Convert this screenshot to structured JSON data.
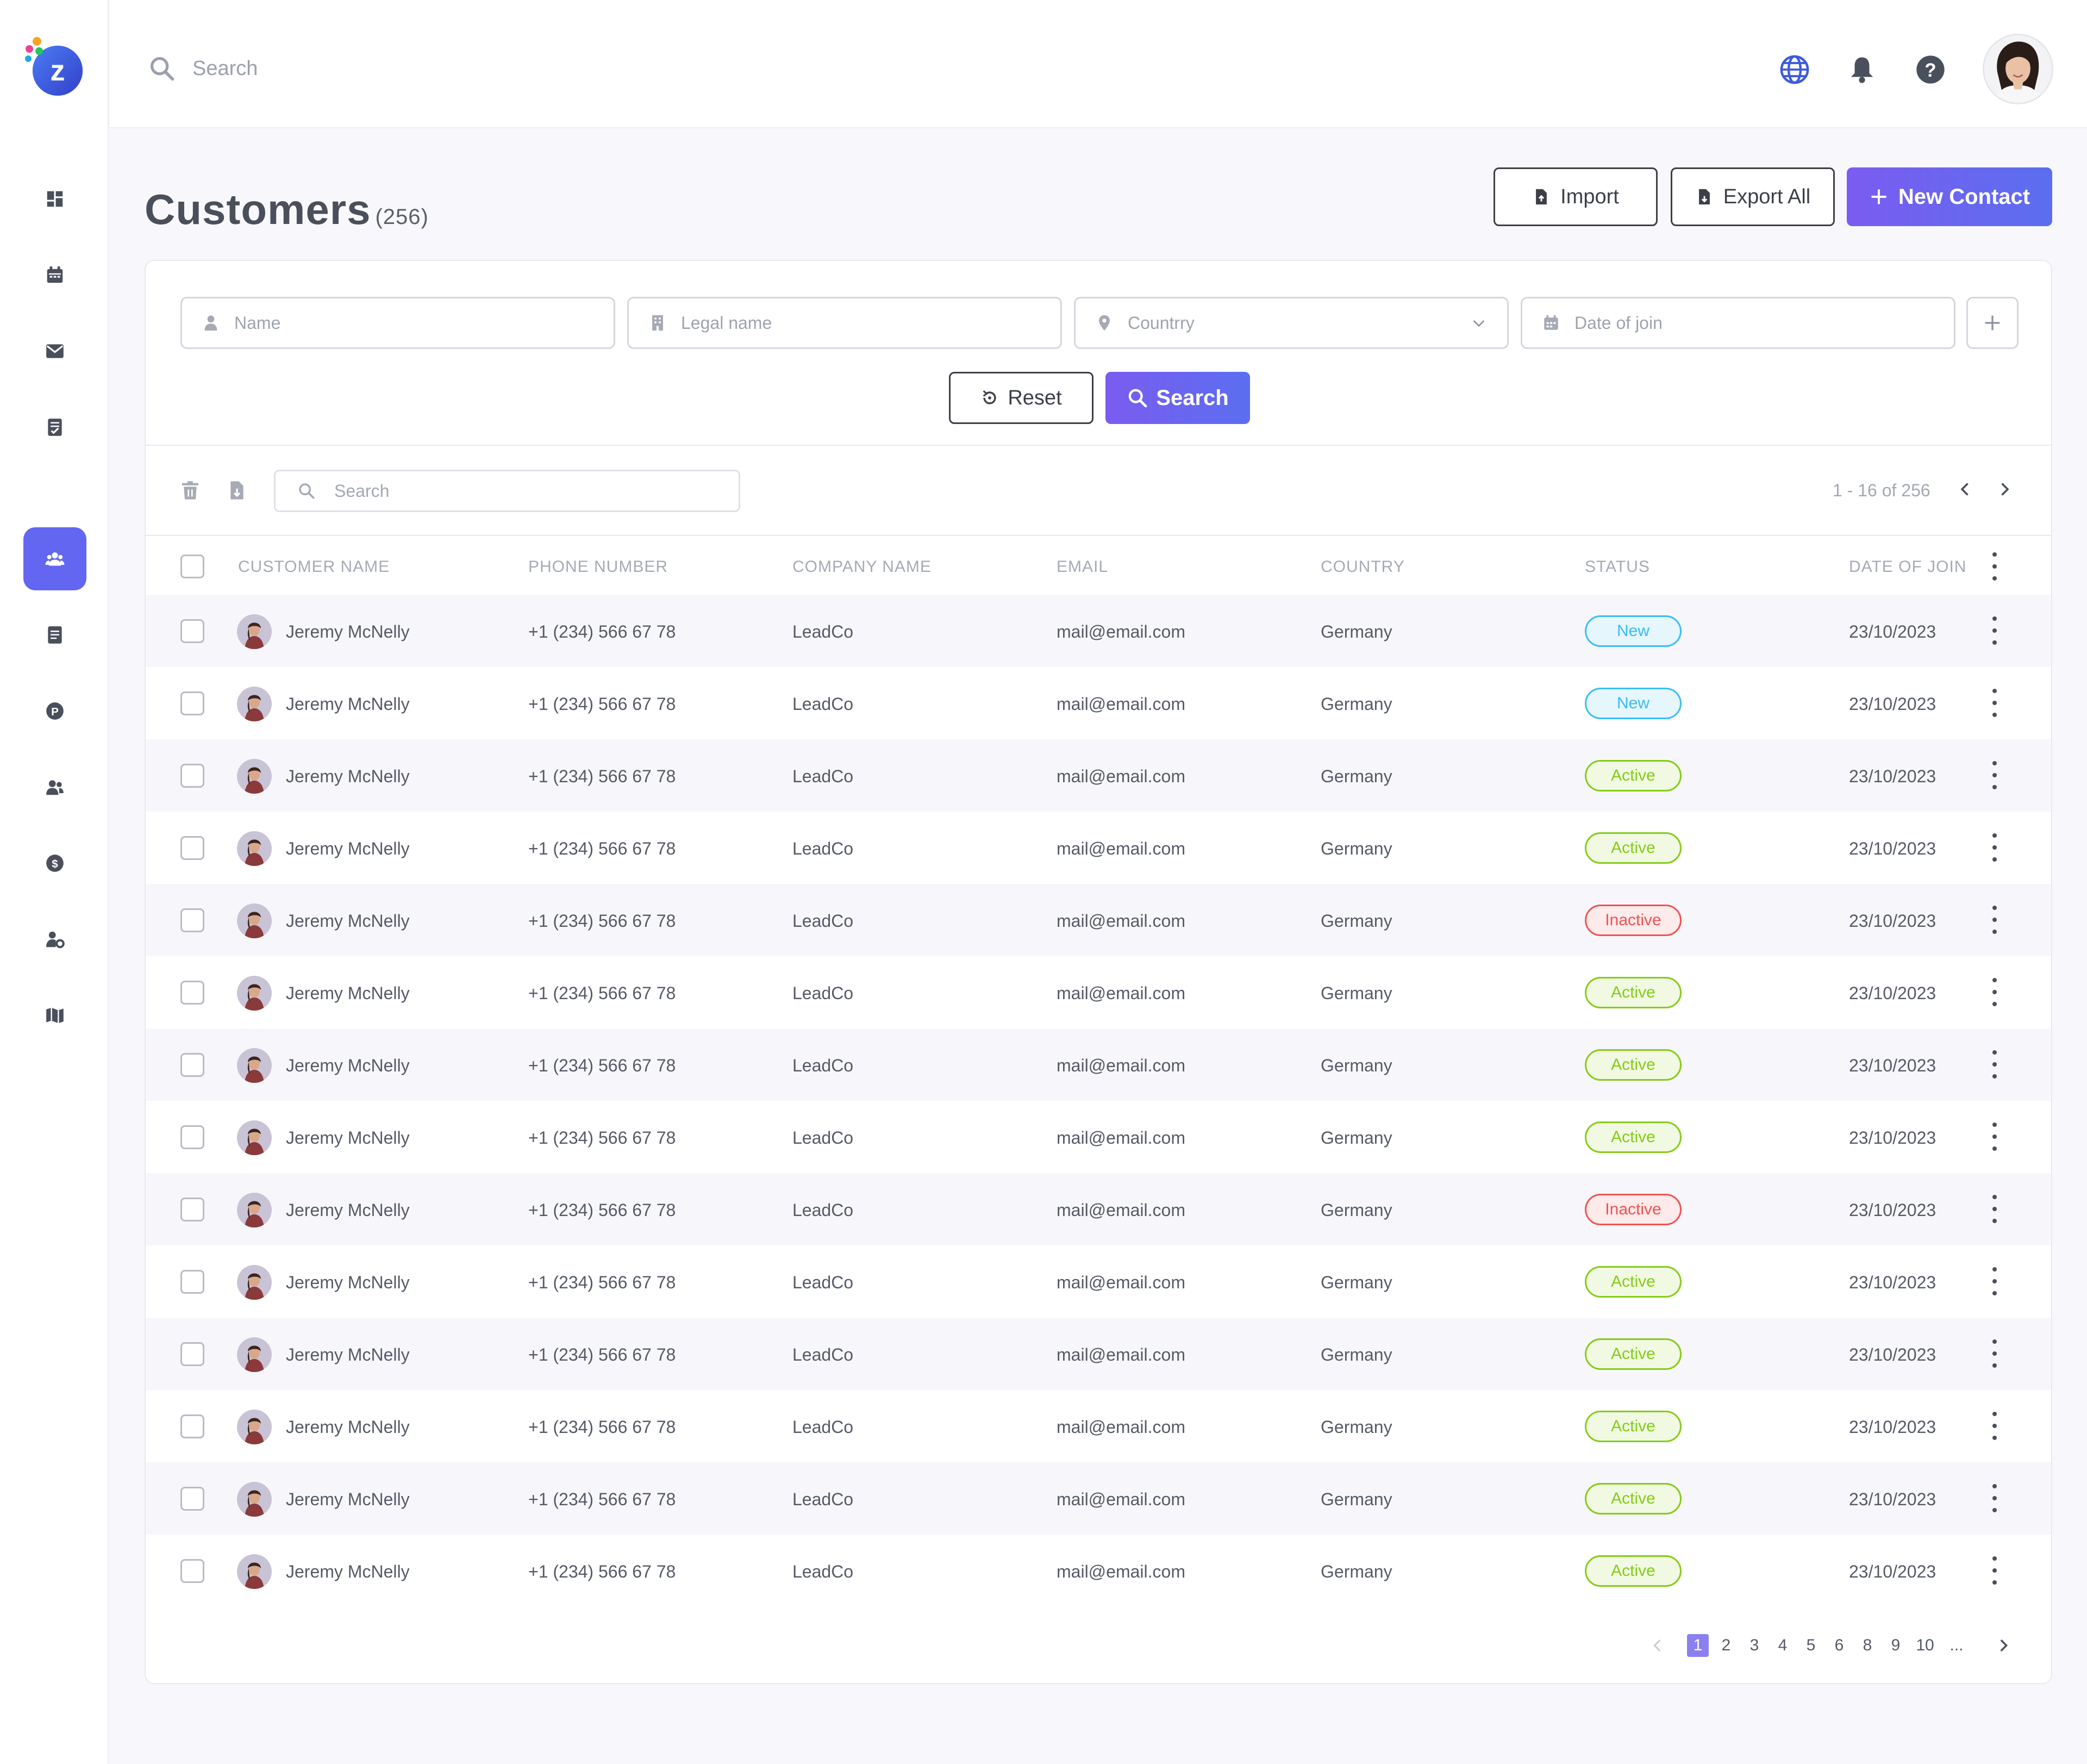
{
  "topbar": {
    "search_placeholder": "Search"
  },
  "sidebar": {
    "items": [
      {
        "icon": "dashboard-icon",
        "active": false
      },
      {
        "icon": "calendar-icon",
        "active": false
      },
      {
        "icon": "mail-icon",
        "active": false
      },
      {
        "icon": "tasks-icon",
        "active": false
      },
      {
        "icon": "customers-icon",
        "active": true
      },
      {
        "icon": "document-icon",
        "active": false
      },
      {
        "icon": "parking-icon",
        "active": false
      },
      {
        "icon": "contacts-icon",
        "active": false
      },
      {
        "icon": "dollar-icon",
        "active": false
      },
      {
        "icon": "user-settings-icon",
        "active": false
      },
      {
        "icon": "map-icon",
        "active": false
      }
    ]
  },
  "header": {
    "title": "Customers",
    "count": "(256)",
    "import_label": "Import",
    "export_label": "Export All",
    "new_contact_label": "New Contact"
  },
  "filters": {
    "name_placeholder": "Name",
    "legal_name_placeholder": "Legal name",
    "country_placeholder": "Countrry",
    "date_placeholder": "Date of join",
    "reset_label": "Reset",
    "search_label": "Search"
  },
  "toolbar": {
    "search_placeholder": "Search",
    "page_info": "1 - 16 of 256"
  },
  "table": {
    "columns": [
      "CUSTOMER NAME",
      "PHONE NUMBER",
      "COMPANY NAME",
      "EMAIL",
      "COUNTRY",
      "STATUS",
      "DATE OF JOIN"
    ],
    "rows": [
      {
        "name": "Jeremy McNelly",
        "phone": "+1 (234) 566 67 78",
        "company": "LeadCo",
        "email": "mail@email.com",
        "country": "Germany",
        "status": "New",
        "date": "23/10/2023"
      },
      {
        "name": "Jeremy McNelly",
        "phone": "+1 (234) 566 67 78",
        "company": "LeadCo",
        "email": "mail@email.com",
        "country": "Germany",
        "status": "New",
        "date": "23/10/2023"
      },
      {
        "name": "Jeremy McNelly",
        "phone": "+1 (234) 566 67 78",
        "company": "LeadCo",
        "email": "mail@email.com",
        "country": "Germany",
        "status": "Active",
        "date": "23/10/2023"
      },
      {
        "name": "Jeremy McNelly",
        "phone": "+1 (234) 566 67 78",
        "company": "LeadCo",
        "email": "mail@email.com",
        "country": "Germany",
        "status": "Active",
        "date": "23/10/2023"
      },
      {
        "name": "Jeremy McNelly",
        "phone": "+1 (234) 566 67 78",
        "company": "LeadCo",
        "email": "mail@email.com",
        "country": "Germany",
        "status": "Inactive",
        "date": "23/10/2023"
      },
      {
        "name": "Jeremy McNelly",
        "phone": "+1 (234) 566 67 78",
        "company": "LeadCo",
        "email": "mail@email.com",
        "country": "Germany",
        "status": "Active",
        "date": "23/10/2023"
      },
      {
        "name": "Jeremy McNelly",
        "phone": "+1 (234) 566 67 78",
        "company": "LeadCo",
        "email": "mail@email.com",
        "country": "Germany",
        "status": "Active",
        "date": "23/10/2023"
      },
      {
        "name": "Jeremy McNelly",
        "phone": "+1 (234) 566 67 78",
        "company": "LeadCo",
        "email": "mail@email.com",
        "country": "Germany",
        "status": "Active",
        "date": "23/10/2023"
      },
      {
        "name": "Jeremy McNelly",
        "phone": "+1 (234) 566 67 78",
        "company": "LeadCo",
        "email": "mail@email.com",
        "country": "Germany",
        "status": "Inactive",
        "date": "23/10/2023"
      },
      {
        "name": "Jeremy McNelly",
        "phone": "+1 (234) 566 67 78",
        "company": "LeadCo",
        "email": "mail@email.com",
        "country": "Germany",
        "status": "Active",
        "date": "23/10/2023"
      },
      {
        "name": "Jeremy McNelly",
        "phone": "+1 (234) 566 67 78",
        "company": "LeadCo",
        "email": "mail@email.com",
        "country": "Germany",
        "status": "Active",
        "date": "23/10/2023"
      },
      {
        "name": "Jeremy McNelly",
        "phone": "+1 (234) 566 67 78",
        "company": "LeadCo",
        "email": "mail@email.com",
        "country": "Germany",
        "status": "Active",
        "date": "23/10/2023"
      },
      {
        "name": "Jeremy McNelly",
        "phone": "+1 (234) 566 67 78",
        "company": "LeadCo",
        "email": "mail@email.com",
        "country": "Germany",
        "status": "Active",
        "date": "23/10/2023"
      },
      {
        "name": "Jeremy McNelly",
        "phone": "+1 (234) 566 67 78",
        "company": "LeadCo",
        "email": "mail@email.com",
        "country": "Germany",
        "status": "Active",
        "date": "23/10/2023"
      }
    ]
  },
  "pagination": {
    "pages": [
      "1",
      "2",
      "3",
      "4",
      "5",
      "6",
      "8",
      "9",
      "10",
      "..."
    ],
    "current": "1"
  },
  "colors": {
    "accent": "#6366f1",
    "status_new": "#38bdf8",
    "status_active": "#84cc16",
    "status_inactive": "#f05252"
  }
}
